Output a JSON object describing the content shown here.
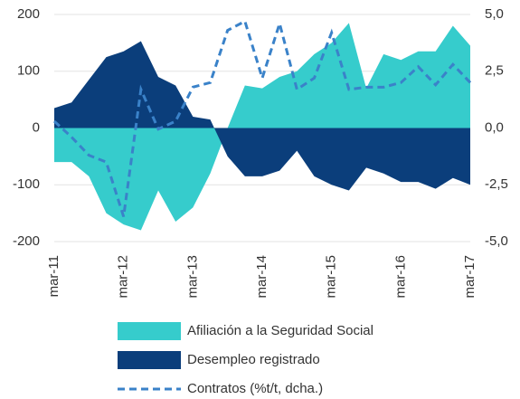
{
  "chart_data": {
    "type": "area_line",
    "categories": [
      "mar-11",
      null,
      null,
      null,
      "mar-12",
      null,
      null,
      null,
      "mar-13",
      null,
      null,
      null,
      "mar-14",
      null,
      null,
      null,
      "mar-15",
      null,
      null,
      null,
      "mar-16",
      null,
      null,
      null,
      "mar-17"
    ],
    "series": [
      {
        "name": "Afiliación a la Seguridad Social",
        "color": "#36cccc",
        "kind": "area",
        "values": [
          -60,
          -60,
          -85,
          -150,
          -170,
          -180,
          -110,
          -165,
          -140,
          -80,
          0,
          75,
          70,
          90,
          100,
          130,
          150,
          185,
          70,
          130,
          120,
          135,
          135,
          180,
          145
        ]
      },
      {
        "name": "Desempleo registrado",
        "color": "#0b3e7b",
        "kind": "area",
        "values": [
          35,
          45,
          85,
          125,
          135,
          153,
          90,
          75,
          20,
          15,
          -50,
          -85,
          -85,
          -75,
          -40,
          -85,
          -100,
          -110,
          -70,
          -80,
          -95,
          -95,
          -107,
          -88,
          -100
        ]
      },
      {
        "name": "Contratos (%t/t, dcha.)",
        "color": "#3a82c9",
        "kind": "line",
        "axis": "y2",
        "values": [
          0.3,
          -0.4,
          -1.2,
          -1.5,
          -3.9,
          1.7,
          -0.05,
          0.3,
          1.8,
          2.0,
          4.3,
          4.7,
          2.2,
          4.6,
          1.7,
          2.2,
          4.2,
          1.7,
          1.8,
          1.8,
          2.0,
          2.7,
          1.9,
          2.8,
          2.0
        ]
      }
    ],
    "ylim": [
      -200,
      200
    ],
    "yticks": [
      -200,
      -100,
      0,
      100,
      200
    ],
    "y2lim": [
      -5,
      5
    ],
    "y2ticks": [
      {
        "value": -5,
        "label": "-5,0"
      },
      {
        "value": -2.5,
        "label": "-2,5"
      },
      {
        "value": 0,
        "label": "0,0"
      },
      {
        "value": 2.5,
        "label": "2,5"
      },
      {
        "value": 5,
        "label": "5,0"
      }
    ],
    "grid": true,
    "legend": "bottom"
  }
}
